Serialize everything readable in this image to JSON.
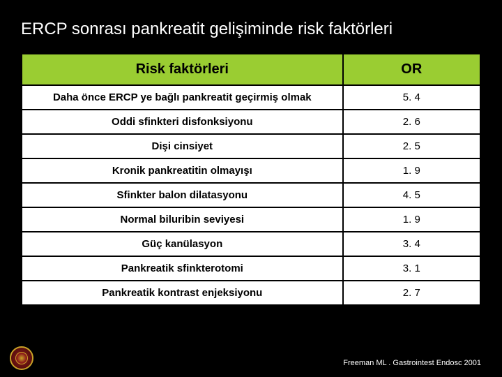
{
  "title": "ERCP  sonrası pankreatit gelişiminde risk  faktörleri",
  "table": {
    "type": "table",
    "header_bg": "#9acd32",
    "cell_bg": "#ffffff",
    "border_color": "#000000",
    "columns": [
      "Risk faktörleri",
      "OR"
    ],
    "rows": [
      [
        "Daha önce ERCP ye  bağlı pankreatit geçirmiş olmak",
        "5. 4"
      ],
      [
        "Oddi sfinkteri disfonksiyonu",
        "2. 6"
      ],
      [
        "Dişi cinsiyet",
        "2. 5"
      ],
      [
        "Kronik pankreatitin olmayışı",
        "1. 9"
      ],
      [
        "Sfinkter balon dilatasyonu",
        "4. 5"
      ],
      [
        "Normal  biluribin  seviyesi",
        "1. 9"
      ],
      [
        "Güç kanülasyon",
        "3. 4"
      ],
      [
        "Pankreatik sfinkterotomi",
        "3. 1"
      ],
      [
        "Pankreatik kontrast enjeksiyonu",
        "2. 7"
      ]
    ],
    "header_fontsize": 20,
    "cell_fontsize": 15
  },
  "citation": "Freeman ML . Gastrointest Endosc  2001",
  "background_color": "#000000",
  "title_color": "#ffffff",
  "title_fontsize": 24
}
